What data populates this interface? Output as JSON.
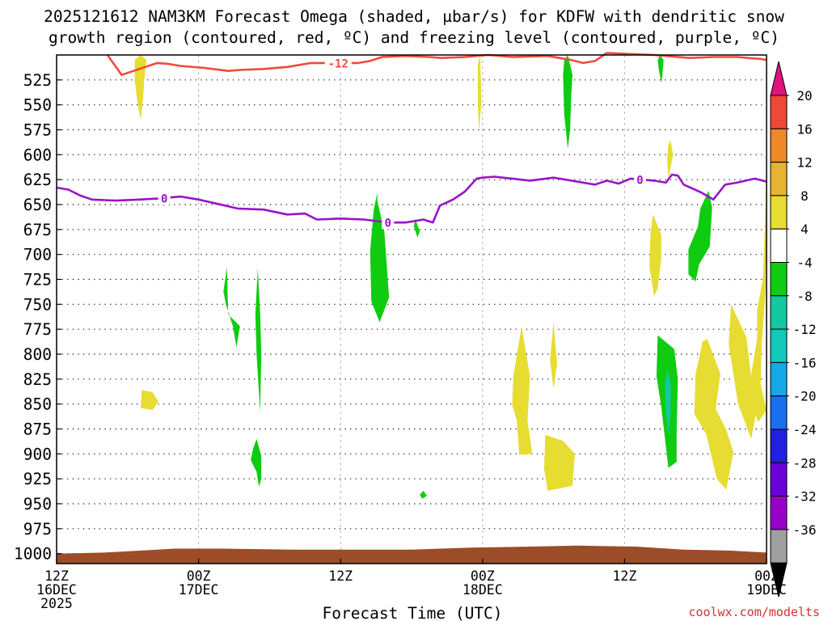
{
  "chart_data": {
    "type": "heatmap",
    "title_line1": "2025121612 NAM3KM Forecast Omega (shaded, µbar/s) for KDFW with dendritic snow",
    "title_line2": "growth region (contoured, red, ºC) and freezing level (contoured, purple, ºC)",
    "xlabel": "Forecast Time (UTC)",
    "credit": "coolwx.com/modelts",
    "x_range_hours": [
      0,
      60
    ],
    "y_range_mb": [
      500,
      1010
    ],
    "y_ticks": [
      525,
      550,
      575,
      600,
      625,
      650,
      675,
      700,
      725,
      750,
      775,
      800,
      825,
      850,
      875,
      900,
      925,
      950,
      975,
      1000
    ],
    "x_ticks": [
      {
        "hour": 0,
        "label1": "12Z",
        "label2": "16DEC",
        "label3": "2025"
      },
      {
        "hour": 12,
        "label1": "00Z",
        "label2": "17DEC",
        "label3": ""
      },
      {
        "hour": 24,
        "label1": "12Z",
        "label2": "",
        "label3": ""
      },
      {
        "hour": 36,
        "label1": "00Z",
        "label2": "18DEC",
        "label3": ""
      },
      {
        "hour": 48,
        "label1": "12Z",
        "label2": "",
        "label3": ""
      },
      {
        "hour": 60,
        "label1": "00Z",
        "label2": "19DEC",
        "label3": ""
      }
    ],
    "colorbar": {
      "levels": [
        -36,
        -32,
        -28,
        -24,
        -20,
        -16,
        -12,
        -8,
        -4,
        4,
        8,
        12,
        16,
        20
      ],
      "label_levels": [
        20,
        16,
        12,
        8,
        4,
        -4,
        -8,
        -12,
        -16,
        -20,
        -24,
        -28,
        -32,
        -36
      ],
      "colors": [
        "#a0a0a0",
        "#9800c8",
        "#6a00d8",
        "#2020e0",
        "#1870f0",
        "#14a8e8",
        "#12c8b8",
        "#14c8a0",
        "#10cc10",
        "#ffffff",
        "#e6dc32",
        "#e6b432",
        "#ee8828",
        "#ee4838"
      ],
      "low_end_color": "#000000",
      "high_end_color": "#e0147e"
    },
    "contour_dgz": {
      "label": "-12",
      "color": "#f04a3c",
      "points": [
        [
          4.3,
          500
        ],
        [
          5.5,
          520
        ],
        [
          6.5,
          516
        ],
        [
          8.5,
          508
        ],
        [
          9.5,
          509
        ],
        [
          10.5,
          511
        ],
        [
          12.5,
          513
        ],
        [
          14.5,
          516
        ],
        [
          15.5,
          515
        ],
        [
          17.5,
          514
        ],
        [
          19.5,
          512
        ],
        [
          21.5,
          508
        ],
        [
          23.5,
          508
        ],
        [
          25.5,
          508
        ],
        [
          26.5,
          506
        ],
        [
          27.5,
          502
        ],
        [
          29.5,
          501
        ],
        [
          31.5,
          502
        ],
        [
          32.5,
          503
        ],
        [
          34.5,
          502
        ],
        [
          36.5,
          500
        ],
        [
          38.5,
          502
        ],
        [
          41.5,
          501
        ],
        [
          43.5,
          505
        ],
        [
          44.5,
          508
        ],
        [
          45.5,
          506
        ],
        [
          46.5,
          498
        ],
        [
          50.5,
          500
        ],
        [
          53.5,
          503
        ],
        [
          55.5,
          502
        ],
        [
          57.5,
          502
        ],
        [
          59.5,
          504
        ],
        [
          60,
          505
        ]
      ]
    },
    "contour_freezing": {
      "label": "0",
      "color": "#9a12c8",
      "points": [
        [
          0,
          633
        ],
        [
          1,
          635
        ],
        [
          2,
          641
        ],
        [
          3,
          645
        ],
        [
          5,
          646
        ],
        [
          7,
          645
        ],
        [
          8.5,
          644
        ],
        [
          10.5,
          642
        ],
        [
          12,
          645
        ],
        [
          13.5,
          649
        ],
        [
          15.3,
          654
        ],
        [
          17.5,
          655
        ],
        [
          19.5,
          660
        ],
        [
          21,
          659
        ],
        [
          22,
          665
        ],
        [
          24,
          664
        ],
        [
          26,
          665
        ],
        [
          28,
          668
        ],
        [
          29.5,
          668
        ],
        [
          31,
          665
        ],
        [
          31.8,
          668
        ],
        [
          32.4,
          651
        ],
        [
          33.5,
          645
        ],
        [
          34.5,
          637
        ],
        [
          35.5,
          624
        ],
        [
          36,
          623
        ],
        [
          37,
          622
        ],
        [
          38.5,
          624
        ],
        [
          40,
          626
        ],
        [
          42,
          623
        ],
        [
          43.5,
          626
        ],
        [
          45.5,
          630
        ],
        [
          46.5,
          626
        ],
        [
          47.5,
          629
        ],
        [
          48.5,
          624
        ],
        [
          50.5,
          626
        ],
        [
          51.5,
          628
        ],
        [
          52,
          620
        ],
        [
          52.5,
          621
        ],
        [
          53,
          630
        ],
        [
          54.5,
          638
        ],
        [
          55.5,
          645
        ],
        [
          56.5,
          630
        ],
        [
          57.5,
          628
        ],
        [
          59,
          624
        ],
        [
          60,
          627
        ]
      ]
    },
    "shaded_regions": [
      {
        "value": 6,
        "points": [
          [
            7.1,
            500
          ],
          [
            7.6,
            505
          ],
          [
            7.4,
            525
          ],
          [
            7.3,
            545
          ],
          [
            7.1,
            565
          ],
          [
            6.8,
            545
          ],
          [
            6.6,
            525
          ],
          [
            6.6,
            505
          ]
        ]
      },
      {
        "value": 6,
        "points": [
          [
            7.2,
            836
          ],
          [
            8.1,
            838
          ],
          [
            8.6,
            847
          ],
          [
            8.1,
            856
          ],
          [
            7.1,
            854
          ]
        ]
      },
      {
        "value": -6,
        "points": [
          [
            14.5,
            760
          ],
          [
            15.5,
            772
          ],
          [
            15.2,
            793
          ],
          [
            14.9,
            772
          ],
          [
            14.3,
            750
          ],
          [
            14.1,
            737
          ],
          [
            14.4,
            713
          ]
        ]
      },
      {
        "value": -6,
        "points": [
          [
            17.2,
            758
          ],
          [
            17.3,
            800
          ],
          [
            17.2,
            858
          ],
          [
            16.9,
            800
          ],
          [
            16.8,
            760
          ],
          [
            17.0,
            714
          ]
        ]
      },
      {
        "value": -6,
        "points": [
          [
            16.9,
            885
          ],
          [
            17.3,
            902
          ],
          [
            17.3,
            925
          ],
          [
            17.1,
            933
          ],
          [
            16.9,
            918
          ],
          [
            16.4,
            906
          ],
          [
            16.6,
            895
          ]
        ]
      },
      {
        "value": -6,
        "points": [
          [
            27.1,
            646
          ],
          [
            27.7,
            677
          ],
          [
            28.1,
            743
          ],
          [
            27.3,
            768
          ],
          [
            26.6,
            747
          ],
          [
            26.5,
            697
          ],
          [
            26.8,
            655
          ],
          [
            27.1,
            638
          ]
        ]
      },
      {
        "value": -6,
        "points": [
          [
            30.3,
            664
          ],
          [
            30.7,
            677
          ],
          [
            30.5,
            683
          ],
          [
            30.2,
            672
          ]
        ]
      },
      {
        "value": -6,
        "points": [
          [
            31.0,
            937
          ],
          [
            31.3,
            942
          ],
          [
            30.9,
            945
          ],
          [
            30.7,
            941
          ]
        ]
      },
      {
        "value": 6,
        "points": [
          [
            35.8,
            500
          ],
          [
            35.9,
            548
          ],
          [
            35.7,
            577
          ],
          [
            35.6,
            548
          ],
          [
            35.6,
            510
          ]
        ]
      },
      {
        "value": 6,
        "points": [
          [
            39.3,
            772
          ],
          [
            40.0,
            822
          ],
          [
            39.8,
            867
          ],
          [
            40.2,
            900
          ],
          [
            39.1,
            901
          ],
          [
            38.9,
            867
          ],
          [
            38.5,
            851
          ],
          [
            38.6,
            822
          ]
        ]
      },
      {
        "value": 6,
        "points": [
          [
            42.0,
            768
          ],
          [
            42.3,
            809
          ],
          [
            42.0,
            835
          ],
          [
            41.7,
            806
          ]
        ]
      },
      {
        "value": 6,
        "points": [
          [
            41.3,
            881
          ],
          [
            42.8,
            887
          ],
          [
            43.8,
            900
          ],
          [
            43.6,
            932
          ],
          [
            41.5,
            937
          ],
          [
            41.2,
            915
          ]
        ]
      },
      {
        "value": -6,
        "points": [
          [
            43.2,
            500
          ],
          [
            43.6,
            520
          ],
          [
            43.5,
            540
          ],
          [
            43.4,
            575
          ],
          [
            43.2,
            594
          ],
          [
            42.9,
            560
          ],
          [
            42.8,
            520
          ],
          [
            42.9,
            505
          ]
        ]
      },
      {
        "value": 6,
        "points": [
          [
            50.4,
            660
          ],
          [
            51.1,
            680
          ],
          [
            51.1,
            705
          ],
          [
            50.8,
            734
          ],
          [
            50.5,
            742
          ],
          [
            50.1,
            712
          ],
          [
            50.2,
            678
          ]
        ]
      },
      {
        "value": -6,
        "points": [
          [
            51.0,
            500
          ],
          [
            51.3,
            505
          ],
          [
            51.2,
            520
          ],
          [
            51.1,
            528
          ],
          [
            50.9,
            515
          ],
          [
            50.8,
            505
          ]
        ]
      },
      {
        "value": 6,
        "points": [
          [
            51.9,
            586
          ],
          [
            52.1,
            600
          ],
          [
            51.9,
            612
          ],
          [
            51.7,
            624
          ],
          [
            51.6,
            604
          ],
          [
            51.7,
            590
          ]
        ]
      },
      {
        "value": -6,
        "points": [
          [
            50.8,
            781
          ],
          [
            52.2,
            795
          ],
          [
            52.5,
            825
          ],
          [
            52.4,
            880
          ],
          [
            52.4,
            908
          ],
          [
            51.7,
            914
          ],
          [
            51.5,
            893
          ],
          [
            51.1,
            853
          ],
          [
            50.7,
            822
          ]
        ]
      },
      {
        "value": -12,
        "points": [
          [
            51.6,
            815
          ],
          [
            51.9,
            830
          ],
          [
            51.9,
            860
          ],
          [
            51.7,
            880
          ],
          [
            51.5,
            860
          ],
          [
            51.4,
            830
          ]
        ]
      },
      {
        "value": -6,
        "points": [
          [
            55.1,
            636
          ],
          [
            55.4,
            653
          ],
          [
            55.2,
            692
          ],
          [
            54.3,
            710
          ],
          [
            54.0,
            727
          ],
          [
            53.4,
            720
          ],
          [
            53.4,
            695
          ],
          [
            54.2,
            672
          ],
          [
            54.4,
            654
          ]
        ]
      },
      {
        "value": 6,
        "points": [
          [
            55.0,
            785
          ],
          [
            56.1,
            820
          ],
          [
            55.7,
            855
          ],
          [
            56.6,
            876
          ],
          [
            57.2,
            898
          ],
          [
            56.6,
            936
          ],
          [
            55.8,
            925
          ],
          [
            54.9,
            880
          ],
          [
            53.9,
            860
          ],
          [
            54.0,
            820
          ],
          [
            54.6,
            787
          ]
        ]
      },
      {
        "value": 6,
        "points": [
          [
            57.0,
            750
          ],
          [
            58.3,
            783
          ],
          [
            58.7,
            823
          ],
          [
            59.2,
            855
          ],
          [
            58.7,
            885
          ],
          [
            57.6,
            850
          ],
          [
            57.2,
            820
          ],
          [
            56.8,
            790
          ]
        ]
      },
      {
        "value": 6,
        "points": [
          [
            60,
            600
          ],
          [
            60,
            680
          ],
          [
            59.9,
            740
          ],
          [
            59.6,
            790
          ],
          [
            59.5,
            830
          ],
          [
            60,
            856
          ],
          [
            59.3,
            868
          ],
          [
            58.7,
            850
          ],
          [
            58.7,
            820
          ],
          [
            59.2,
            785
          ],
          [
            59.2,
            756
          ],
          [
            59.7,
            724
          ],
          [
            59.9,
            660
          ]
        ]
      }
    ],
    "terrain": {
      "color": "#9c4c26",
      "points": [
        [
          0,
          1000
        ],
        [
          4,
          999
        ],
        [
          7,
          997
        ],
        [
          10,
          995
        ],
        [
          14,
          995
        ],
        [
          20,
          996
        ],
        [
          25,
          996
        ],
        [
          30,
          996
        ],
        [
          35,
          994
        ],
        [
          40,
          993
        ],
        [
          44,
          992
        ],
        [
          49,
          993
        ],
        [
          53,
          996
        ],
        [
          57,
          997
        ],
        [
          60,
          999
        ]
      ]
    }
  }
}
